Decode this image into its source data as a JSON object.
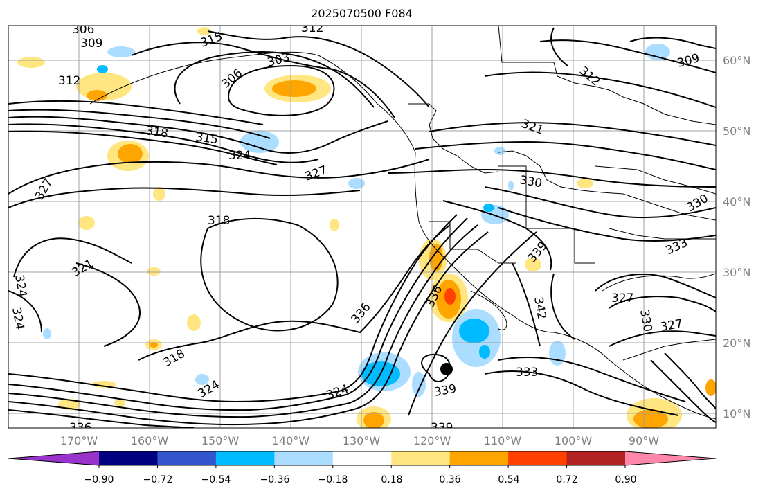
{
  "title": "2025070500 F084",
  "lon_ticks": [
    "170°W",
    "160°W",
    "150°W",
    "140°W",
    "130°W",
    "120°W",
    "110°W",
    "100°W",
    "90°W"
  ],
  "lat_ticks": [
    "60°N",
    "50°N",
    "40°N",
    "30°N",
    "20°N",
    "10°N"
  ],
  "colorbar": {
    "ticks": [
      "−0.90",
      "−0.72",
      "−0.54",
      "−0.36",
      "−0.18",
      "0.18",
      "0.36",
      "0.54",
      "0.72",
      "0.90"
    ],
    "colors": [
      "#9933cc",
      "#000080",
      "#3355cc",
      "#00bbff",
      "#aaddff",
      "#ffffff",
      "#ffe680",
      "#ffa500",
      "#ff4000",
      "#b22222",
      "#ff88aa"
    ]
  },
  "contour_labels": [
    "306",
    "309",
    "315",
    "312",
    "303",
    "306",
    "309",
    "312",
    "312",
    "318",
    "315",
    "324",
    "327",
    "321",
    "330",
    "330",
    "333",
    "318",
    "327",
    "321",
    "324",
    "324",
    "336",
    "339",
    "342",
    "333",
    "339",
    "327",
    "330",
    "327",
    "318",
    "324",
    "324",
    "336",
    "339"
  ]
}
